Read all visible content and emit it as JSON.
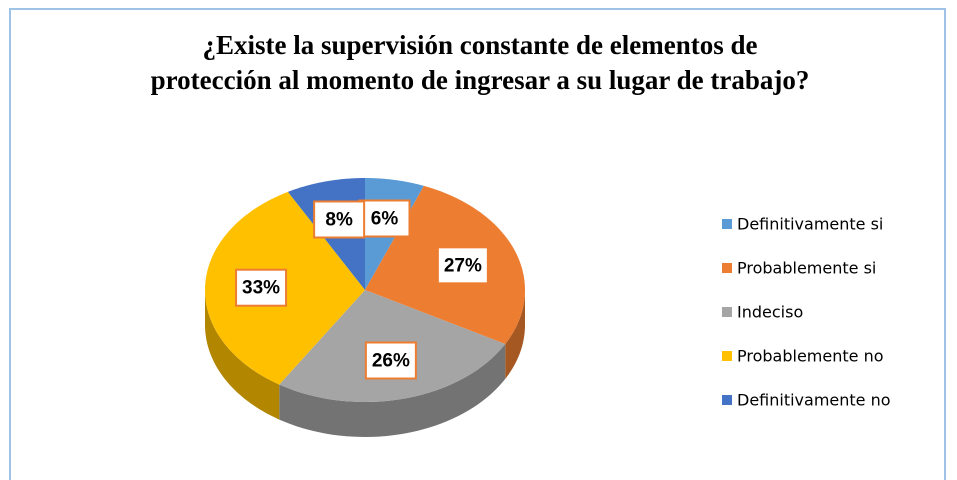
{
  "chart_data": {
    "type": "pie",
    "title": "¿Existe la supervisión constante de elementos de protección al momento de ingresar a su lugar de trabajo?",
    "categories": [
      "Definitivamente si",
      "Probablemente si",
      "Indeciso",
      "Probablemente no",
      "Definitivamente no"
    ],
    "values": [
      6,
      27,
      26,
      33,
      8
    ],
    "value_labels": [
      "6%",
      "27%",
      "26%",
      "33%",
      "8%"
    ],
    "colors": [
      "#5b9bd5",
      "#ed7d31",
      "#a5a5a5",
      "#ffc000",
      "#4472c4"
    ],
    "legend": "right"
  }
}
